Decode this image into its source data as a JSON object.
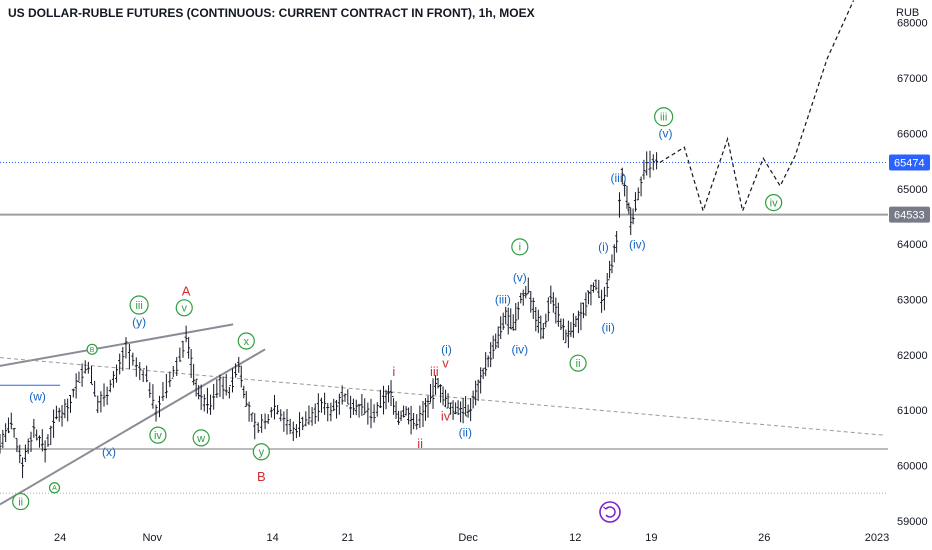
{
  "chart_data": {
    "type": "candlestick",
    "title": "US DOLLAR-RUBLE FUTURES (CONTINUOUS: CURRENT CONTRACT IN FRONT), 1h, MOEX",
    "currency": "RUB",
    "ylim": [
      58900,
      68400
    ],
    "y_ticks": [
      59000,
      60000,
      61000,
      62000,
      63000,
      64000,
      65000,
      66000,
      67000,
      68000
    ],
    "x_ticks": [
      {
        "label": "24",
        "pos": 0.064
      },
      {
        "label": "Nov",
        "pos": 0.162
      },
      {
        "label": "14",
        "pos": 0.29
      },
      {
        "label": "21",
        "pos": 0.37
      },
      {
        "label": "Dec",
        "pos": 0.498
      },
      {
        "label": "12",
        "pos": 0.612
      },
      {
        "label": "19",
        "pos": 0.693
      },
      {
        "label": "26",
        "pos": 0.813
      },
      {
        "label": "2023",
        "pos": 0.933
      }
    ],
    "price_labels": [
      {
        "value": 65474,
        "text": "65474",
        "bg": "#2962ff",
        "color": "#ffffff"
      },
      {
        "value": 64533,
        "text": "64533",
        "bg": "#787b86",
        "color": "#ffffff"
      }
    ],
    "price_path": [
      [
        0.0,
        60400
      ],
      [
        0.012,
        60750
      ],
      [
        0.024,
        60050
      ],
      [
        0.036,
        60650
      ],
      [
        0.048,
        60300
      ],
      [
        0.06,
        60900
      ],
      [
        0.072,
        61050
      ],
      [
        0.084,
        61600
      ],
      [
        0.094,
        61800
      ],
      [
        0.104,
        61100
      ],
      [
        0.114,
        61350
      ],
      [
        0.124,
        61650
      ],
      [
        0.134,
        62150
      ],
      [
        0.145,
        61750
      ],
      [
        0.156,
        61600
      ],
      [
        0.166,
        61000
      ],
      [
        0.177,
        61400
      ],
      [
        0.188,
        61800
      ],
      [
        0.198,
        62350
      ],
      [
        0.206,
        61600
      ],
      [
        0.214,
        61200
      ],
      [
        0.224,
        61100
      ],
      [
        0.234,
        61500
      ],
      [
        0.244,
        61350
      ],
      [
        0.254,
        61850
      ],
      [
        0.262,
        61150
      ],
      [
        0.271,
        60700
      ],
      [
        0.282,
        60750
      ],
      [
        0.292,
        61100
      ],
      [
        0.302,
        60850
      ],
      [
        0.312,
        60600
      ],
      [
        0.322,
        60800
      ],
      [
        0.332,
        60900
      ],
      [
        0.342,
        61100
      ],
      [
        0.352,
        61000
      ],
      [
        0.364,
        61250
      ],
      [
        0.376,
        61100
      ],
      [
        0.388,
        61000
      ],
      [
        0.398,
        60900
      ],
      [
        0.408,
        61200
      ],
      [
        0.416,
        61300
      ],
      [
        0.424,
        60850
      ],
      [
        0.432,
        61000
      ],
      [
        0.44,
        60750
      ],
      [
        0.45,
        60950
      ],
      [
        0.458,
        61200
      ],
      [
        0.466,
        61500
      ],
      [
        0.474,
        61150
      ],
      [
        0.482,
        61000
      ],
      [
        0.49,
        61050
      ],
      [
        0.498,
        60950
      ],
      [
        0.506,
        61300
      ],
      [
        0.514,
        61700
      ],
      [
        0.522,
        62000
      ],
      [
        0.53,
        62300
      ],
      [
        0.538,
        62700
      ],
      [
        0.546,
        62500
      ],
      [
        0.554,
        63000
      ],
      [
        0.562,
        63200
      ],
      [
        0.57,
        62700
      ],
      [
        0.578,
        62400
      ],
      [
        0.586,
        63100
      ],
      [
        0.594,
        62700
      ],
      [
        0.602,
        62300
      ],
      [
        0.61,
        62500
      ],
      [
        0.618,
        62700
      ],
      [
        0.626,
        63100
      ],
      [
        0.634,
        63300
      ],
      [
        0.64,
        62900
      ],
      [
        0.646,
        63200
      ],
      [
        0.651,
        63700
      ],
      [
        0.656,
        64100
      ],
      [
        0.662,
        65300
      ],
      [
        0.667,
        64800
      ],
      [
        0.671,
        64400
      ],
      [
        0.676,
        64700
      ],
      [
        0.682,
        65100
      ],
      [
        0.688,
        65400
      ],
      [
        0.695,
        65450
      ],
      [
        0.702,
        65474
      ]
    ],
    "levels": [
      {
        "value": 65474,
        "style": "dotted-blue"
      },
      {
        "value": 64533,
        "style": "solid-gray"
      },
      {
        "value": 60300,
        "style": "solid-thin"
      },
      {
        "value": 59500,
        "style": "dotted-gray"
      }
    ],
    "projection": [
      [
        0.702,
        65474
      ],
      [
        0.728,
        65750
      ],
      [
        0.748,
        64600
      ],
      [
        0.774,
        65900
      ],
      [
        0.79,
        64600
      ],
      [
        0.812,
        65550
      ],
      [
        0.83,
        65050
      ],
      [
        0.846,
        65600
      ],
      [
        0.88,
        67350
      ],
      [
        0.908,
        68400
      ]
    ],
    "wave_labels": [
      {
        "text": "ii",
        "x": 0.022,
        "y": 59350,
        "style": "green-circle"
      },
      {
        "text": "A",
        "x": 0.058,
        "y": 59600,
        "style": "green-circle-small"
      },
      {
        "text": "(w)",
        "x": 0.04,
        "y": 61250,
        "style": "blue"
      },
      {
        "text": "B",
        "x": 0.098,
        "y": 62100,
        "style": "green-circle-small"
      },
      {
        "text": "(x)",
        "x": 0.116,
        "y": 60250,
        "style": "blue"
      },
      {
        "text": "iii",
        "x": 0.148,
        "y": 62900,
        "style": "green-circle"
      },
      {
        "text": "(y)",
        "x": 0.148,
        "y": 62600,
        "style": "blue"
      },
      {
        "text": "iv",
        "x": 0.168,
        "y": 60550,
        "style": "green-circle"
      },
      {
        "text": "A",
        "x": 0.198,
        "y": 63150,
        "style": "red"
      },
      {
        "text": "v",
        "x": 0.196,
        "y": 62850,
        "style": "green-circle"
      },
      {
        "text": "w",
        "x": 0.214,
        "y": 60500,
        "style": "green-circle"
      },
      {
        "text": "x",
        "x": 0.262,
        "y": 62250,
        "style": "green-circle"
      },
      {
        "text": "y",
        "x": 0.278,
        "y": 60250,
        "style": "green-circle"
      },
      {
        "text": "B",
        "x": 0.278,
        "y": 59800,
        "style": "red"
      },
      {
        "text": "i",
        "x": 0.419,
        "y": 61700,
        "style": "red"
      },
      {
        "text": "iii",
        "x": 0.462,
        "y": 61700,
        "style": "red"
      },
      {
        "text": "v",
        "x": 0.474,
        "y": 61850,
        "style": "red"
      },
      {
        "text": "iv",
        "x": 0.474,
        "y": 60900,
        "style": "red"
      },
      {
        "text": "ii",
        "x": 0.447,
        "y": 60400,
        "style": "red"
      },
      {
        "text": "(i)",
        "x": 0.475,
        "y": 62100,
        "style": "blue"
      },
      {
        "text": "(ii)",
        "x": 0.495,
        "y": 60600,
        "style": "blue"
      },
      {
        "text": "(iii)",
        "x": 0.535,
        "y": 63000,
        "style": "blue"
      },
      {
        "text": "(iv)",
        "x": 0.553,
        "y": 62100,
        "style": "blue"
      },
      {
        "text": "i",
        "x": 0.553,
        "y": 63950,
        "style": "green-circle"
      },
      {
        "text": "(v)",
        "x": 0.553,
        "y": 63400,
        "style": "blue"
      },
      {
        "text": "ii",
        "x": 0.615,
        "y": 61850,
        "style": "green-circle"
      },
      {
        "text": "(i)",
        "x": 0.642,
        "y": 63950,
        "style": "blue"
      },
      {
        "text": "(ii)",
        "x": 0.647,
        "y": 62500,
        "style": "blue"
      },
      {
        "text": "(iii)",
        "x": 0.658,
        "y": 65200,
        "style": "blue"
      },
      {
        "text": "(iv)",
        "x": 0.678,
        "y": 64000,
        "style": "blue"
      },
      {
        "text": "iii",
        "x": 0.706,
        "y": 66300,
        "style": "green-circle"
      },
      {
        "text": "(v)",
        "x": 0.708,
        "y": 66000,
        "style": "blue"
      },
      {
        "text": "iv",
        "x": 0.823,
        "y": 64750,
        "style": "green-circle"
      }
    ],
    "trendlines": [
      {
        "from": [
          0.0,
          61800
        ],
        "to": [
          0.248,
          62550
        ],
        "style": "gray"
      },
      {
        "from": [
          0.0,
          59300
        ],
        "to": [
          0.282,
          62100
        ],
        "style": "gray"
      },
      {
        "from": [
          0.0,
          61950
        ],
        "to": [
          0.94,
          60550
        ],
        "style": "dashed-gray"
      },
      {
        "from": [
          0.0,
          61450
        ],
        "to": [
          0.064,
          61450
        ],
        "style": "blue"
      }
    ]
  }
}
